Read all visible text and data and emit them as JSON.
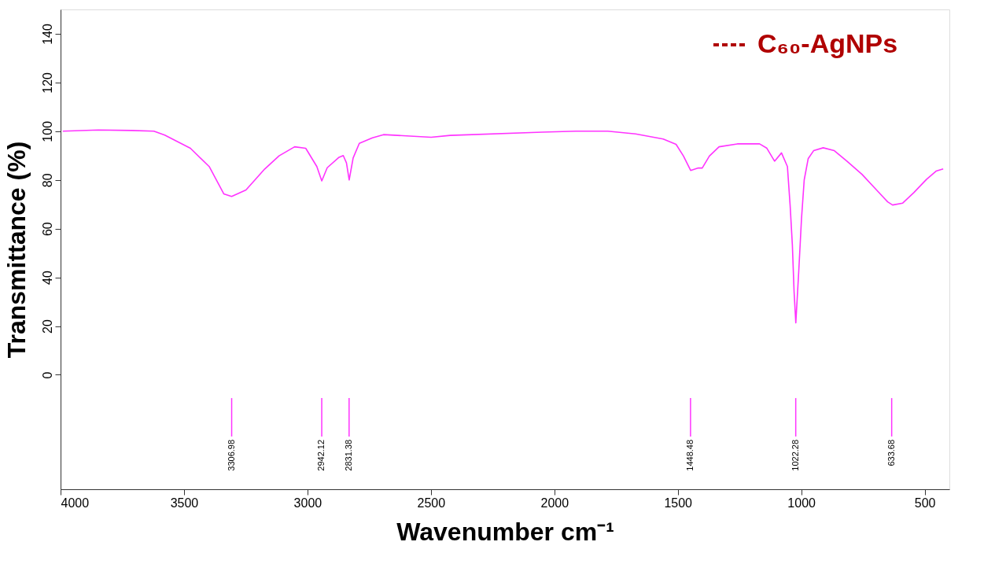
{
  "chart_data": {
    "type": "line",
    "xlabel": "Wavenumber cm⁻¹",
    "ylabel": "Transmittance (%)",
    "xlim": [
      4000,
      400
    ],
    "ylim": [
      -47,
      150
    ],
    "xticks": [
      4000,
      3500,
      3000,
      2500,
      2000,
      1500,
      1000,
      500
    ],
    "yticks": [
      0,
      20,
      40,
      60,
      80,
      100,
      120,
      140
    ],
    "grid": false,
    "legend": "top right",
    "marker": "none",
    "line_style": "solid",
    "x": [
      3991,
      3847,
      3712,
      3622,
      3578,
      3474,
      3398,
      3339,
      3307,
      3249,
      3173,
      3115,
      3052,
      3007,
      2962,
      2942,
      2920,
      2872,
      2855,
      2842,
      2831,
      2815,
      2790,
      2737,
      2692,
      2499,
      2422,
      2049,
      1912,
      1784,
      1671,
      1559,
      1507,
      1477,
      1448,
      1417,
      1401,
      1372,
      1333,
      1259,
      1169,
      1140,
      1108,
      1080,
      1056,
      1045,
      1036,
      1029,
      1022,
      1010,
      999,
      988,
      972,
      950,
      911,
      866,
      815,
      754,
      695,
      650,
      630,
      589,
      544,
      493,
      454,
      425
    ],
    "series": [
      {
        "name": "C₆₀-AgNPs",
        "color": "#ff33ff",
        "values": [
          100,
          100.5,
          100.3,
          100,
          98.4,
          93,
          85.5,
          74.3,
          73.2,
          75.9,
          84.5,
          89.9,
          93.6,
          93,
          85.5,
          79.6,
          85,
          89.3,
          90,
          87,
          80,
          89,
          95,
          97.3,
          98.6,
          97.5,
          98.3,
          99.6,
          100,
          100,
          98.9,
          96.8,
          94.6,
          89.8,
          83.9,
          84.9,
          84.9,
          89.8,
          93.6,
          94.8,
          94.8,
          93.1,
          87.7,
          91.1,
          85.5,
          69.5,
          53.4,
          34.1,
          21.3,
          42.7,
          64,
          80,
          88.7,
          92,
          93.2,
          92,
          87.7,
          82.3,
          75.9,
          71,
          69.7,
          70.5,
          74.8,
          80.2,
          83.6,
          84.5
        ]
      }
    ],
    "annotations": [
      {
        "text": "3306.98",
        "x": 3306.98
      },
      {
        "text": "2942.12",
        "x": 2942.12
      },
      {
        "text": "2831.38",
        "x": 2831.38
      },
      {
        "text": "1448.48",
        "x": 1448.48
      },
      {
        "text": "1022.28",
        "x": 1022.28
      },
      {
        "text": "633.68",
        "x": 633.68
      }
    ]
  }
}
